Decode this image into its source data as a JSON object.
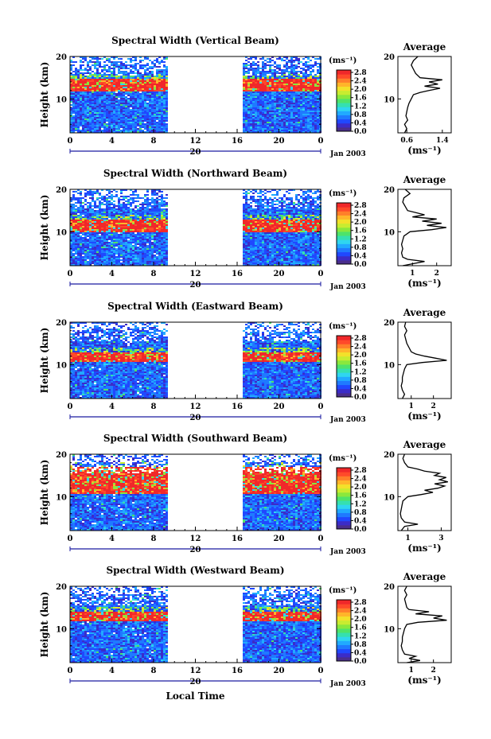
{
  "figure": {
    "xlabel": "Local Time",
    "date_label": "Jan 2003",
    "day_label": "20",
    "ylabel": "Height (km)",
    "avg_title": "Average",
    "unit": "(ms⁻¹)",
    "avg_xlabel": "(ms⁻¹)"
  },
  "colorbar": {
    "ticks": [
      "2.8",
      "2.4",
      "2.0",
      "1.6",
      "1.2",
      "0.8",
      "0.4",
      "0.0"
    ],
    "colors": [
      "#4a2e8c",
      "#3b2cc8",
      "#2048ff",
      "#1f7aff",
      "#21aaff",
      "#2fd6f0",
      "#35e0b0",
      "#4ee36a",
      "#8ae83c",
      "#c8ec30",
      "#f3e12a",
      "#ffb52a",
      "#ff7f2a",
      "#ff4a2a",
      "#f0282a"
    ]
  },
  "chart_data": [
    {
      "type": "heatmap",
      "title": "Spectral Width (Vertical Beam)",
      "xlabel": "Local Time",
      "ylabel": "Height (km)",
      "x_ticks": [
        "0",
        "4",
        "8",
        "12",
        "16",
        "20",
        "0"
      ],
      "y_ticks": [
        "20",
        "10"
      ],
      "xlim": [
        0,
        24
      ],
      "ylim": [
        2,
        20
      ],
      "data_gap_hours": [
        9.3,
        16.6
      ],
      "high_width_layer_km": [
        12,
        15
      ],
      "profile": {
        "xlabel": "(ms⁻¹)",
        "x_ticks": [
          "0.6",
          "1.4"
        ],
        "xlim": [
          0.4,
          1.6
        ],
        "points": [
          [
            0.55,
            2
          ],
          [
            0.6,
            3
          ],
          [
            0.55,
            4
          ],
          [
            0.62,
            5
          ],
          [
            0.58,
            6
          ],
          [
            0.6,
            7
          ],
          [
            0.62,
            8
          ],
          [
            0.65,
            9
          ],
          [
            0.7,
            10
          ],
          [
            0.75,
            11
          ],
          [
            0.9,
            11.5
          ],
          [
            1.1,
            12
          ],
          [
            1.35,
            12.5
          ],
          [
            1.0,
            13
          ],
          [
            1.3,
            13.5
          ],
          [
            1.1,
            14
          ],
          [
            1.4,
            14.5
          ],
          [
            0.9,
            15
          ],
          [
            0.8,
            16
          ],
          [
            0.75,
            17
          ],
          [
            0.7,
            18
          ],
          [
            0.75,
            19
          ],
          [
            0.85,
            20
          ]
        ]
      }
    },
    {
      "type": "heatmap",
      "title": "Spectral Width (Northward Beam)",
      "xlabel": "Local Time",
      "ylabel": "Height (km)",
      "x_ticks": [
        "0",
        "4",
        "8",
        "12",
        "16",
        "20",
        "0"
      ],
      "y_ticks": [
        "20",
        "10"
      ],
      "xlim": [
        0,
        24
      ],
      "ylim": [
        2,
        20
      ],
      "data_gap_hours": [
        9.3,
        16.6
      ],
      "high_width_layer_km": [
        10,
        13
      ],
      "profile": {
        "xlabel": "(ms⁻¹)",
        "x_ticks": [
          "1",
          "2"
        ],
        "xlim": [
          0.4,
          2.6
        ],
        "points": [
          [
            0.6,
            2
          ],
          [
            1.5,
            3
          ],
          [
            0.8,
            3.5
          ],
          [
            0.6,
            4
          ],
          [
            0.55,
            5
          ],
          [
            0.6,
            6
          ],
          [
            0.55,
            7
          ],
          [
            0.6,
            8
          ],
          [
            0.65,
            9
          ],
          [
            0.9,
            10
          ],
          [
            1.8,
            10.5
          ],
          [
            2.4,
            11
          ],
          [
            1.6,
            11.5
          ],
          [
            2.2,
            12
          ],
          [
            1.4,
            12.5
          ],
          [
            2.0,
            13
          ],
          [
            1.0,
            13.5
          ],
          [
            1.5,
            14
          ],
          [
            0.8,
            15
          ],
          [
            0.7,
            16
          ],
          [
            0.6,
            17
          ],
          [
            0.65,
            18
          ],
          [
            0.9,
            19
          ],
          [
            0.7,
            20
          ]
        ]
      }
    },
    {
      "type": "heatmap",
      "title": "Spectral Width (Eastward Beam)",
      "xlabel": "Local Time",
      "ylabel": "Height (km)",
      "x_ticks": [
        "0",
        "4",
        "8",
        "12",
        "16",
        "20",
        "0"
      ],
      "y_ticks": [
        "20",
        "10"
      ],
      "xlim": [
        0,
        24
      ],
      "ylim": [
        2,
        20
      ],
      "data_gap_hours": [
        9.3,
        16.6
      ],
      "high_width_layer_km": [
        11,
        13
      ],
      "profile": {
        "xlabel": "(ms⁻¹)",
        "x_ticks": [
          "1",
          "2"
        ],
        "xlim": [
          0.4,
          2.8
        ],
        "points": [
          [
            0.6,
            2
          ],
          [
            0.7,
            3
          ],
          [
            0.6,
            4
          ],
          [
            0.55,
            5
          ],
          [
            0.6,
            6
          ],
          [
            0.6,
            7
          ],
          [
            0.65,
            8
          ],
          [
            0.7,
            9
          ],
          [
            0.8,
            10
          ],
          [
            1.5,
            10.5
          ],
          [
            2.6,
            11
          ],
          [
            2.1,
            11.5
          ],
          [
            1.6,
            12
          ],
          [
            1.2,
            12.5
          ],
          [
            1.0,
            13
          ],
          [
            0.9,
            14
          ],
          [
            0.8,
            15
          ],
          [
            0.75,
            16
          ],
          [
            0.7,
            17
          ],
          [
            0.8,
            18
          ],
          [
            0.7,
            19
          ],
          [
            0.75,
            20
          ]
        ]
      }
    },
    {
      "type": "heatmap",
      "title": "Spectral Width (Southward Beam)",
      "xlabel": "Local Time",
      "ylabel": "Height (km)",
      "x_ticks": [
        "0",
        "4",
        "8",
        "12",
        "16",
        "20",
        "0"
      ],
      "y_ticks": [
        "20",
        "10"
      ],
      "xlim": [
        0,
        24
      ],
      "ylim": [
        2,
        20
      ],
      "data_gap_hours": [
        9.3,
        16.6
      ],
      "high_width_layer_km": [
        11,
        17
      ],
      "profile": {
        "xlabel": "(ms⁻¹)",
        "x_ticks": [
          "1",
          "3"
        ],
        "xlim": [
          0.4,
          3.6
        ],
        "points": [
          [
            0.6,
            2
          ],
          [
            0.8,
            3
          ],
          [
            1.6,
            3.5
          ],
          [
            0.8,
            4
          ],
          [
            0.6,
            5
          ],
          [
            0.55,
            6
          ],
          [
            0.6,
            7
          ],
          [
            0.65,
            8
          ],
          [
            0.7,
            9
          ],
          [
            1.0,
            10
          ],
          [
            1.8,
            10.5
          ],
          [
            2.5,
            11
          ],
          [
            2.0,
            11.5
          ],
          [
            2.8,
            12
          ],
          [
            3.2,
            12.5
          ],
          [
            2.6,
            13
          ],
          [
            3.4,
            13.5
          ],
          [
            2.9,
            14
          ],
          [
            3.3,
            14.5
          ],
          [
            2.6,
            15
          ],
          [
            2.9,
            15.5
          ],
          [
            2.0,
            16
          ],
          [
            1.6,
            16.5
          ],
          [
            1.0,
            17
          ],
          [
            0.8,
            18
          ],
          [
            0.7,
            19
          ],
          [
            0.8,
            20
          ]
        ]
      }
    },
    {
      "type": "heatmap",
      "title": "Spectral Width (Westward Beam)",
      "xlabel": "Local Time",
      "ylabel": "Height (km)",
      "x_ticks": [
        "0",
        "4",
        "8",
        "12",
        "16",
        "20",
        "0"
      ],
      "y_ticks": [
        "20",
        "10"
      ],
      "xlim": [
        0,
        24
      ],
      "ylim": [
        2,
        20
      ],
      "data_gap_hours": [
        9.3,
        16.6
      ],
      "high_width_layer_km": [
        12,
        14
      ],
      "profile": {
        "xlabel": "(ms⁻¹)",
        "x_ticks": [
          "1",
          "2"
        ],
        "xlim": [
          0.4,
          2.8
        ],
        "points": [
          [
            0.8,
            2
          ],
          [
            1.4,
            2.5
          ],
          [
            0.9,
            3
          ],
          [
            1.2,
            3.5
          ],
          [
            0.7,
            4
          ],
          [
            0.6,
            5
          ],
          [
            0.55,
            6
          ],
          [
            0.6,
            7
          ],
          [
            0.6,
            8
          ],
          [
            0.65,
            9
          ],
          [
            0.7,
            10
          ],
          [
            0.8,
            11
          ],
          [
            1.3,
            11.5
          ],
          [
            2.6,
            12
          ],
          [
            2.0,
            12.5
          ],
          [
            2.4,
            13
          ],
          [
            1.2,
            13.5
          ],
          [
            1.8,
            14
          ],
          [
            0.9,
            14.5
          ],
          [
            0.8,
            15
          ],
          [
            0.75,
            16
          ],
          [
            0.7,
            17
          ],
          [
            0.8,
            18
          ],
          [
            0.7,
            19
          ],
          [
            0.8,
            20
          ]
        ]
      }
    }
  ]
}
